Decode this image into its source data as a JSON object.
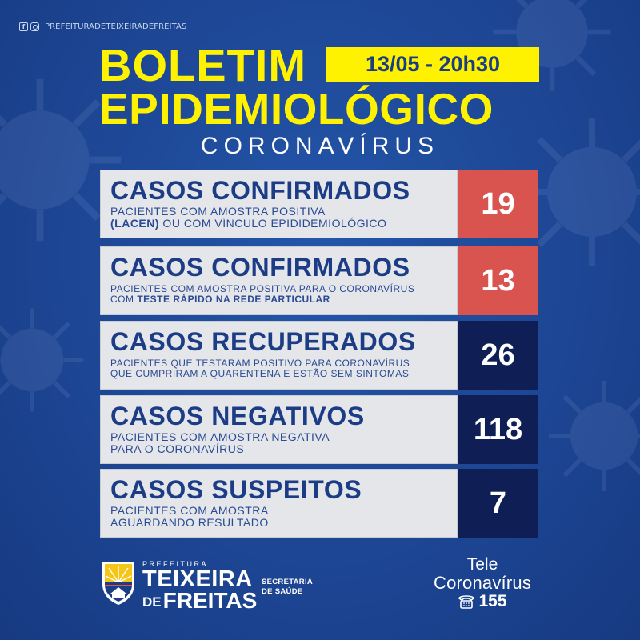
{
  "social": {
    "handle": "PREFEITURADETEIXEIRADEFREITAS",
    "icons": [
      "facebook-icon",
      "instagram-icon"
    ]
  },
  "header": {
    "title_line1": "BOLETIM",
    "title_line2": "EPIDEMIOLÓGICO",
    "subtitle": "CORONAVÍRUS",
    "date": "13/05 - 20h30"
  },
  "colors": {
    "background": "#1f4a9a",
    "title_yellow": "#fff200",
    "card_bg": "#e4e6ea",
    "heading_blue": "#1c3d86",
    "value_red": "#d9544f",
    "value_navy": "#0f1f55"
  },
  "cards": [
    {
      "heading": "CASOS CONFIRMADOS",
      "line1": "PACIENTES COM AMOSTRA POSITIVA",
      "line2_bold": "(LACEN)",
      "line2_rest": " OU COM VÍNCULO EPIDIDEMIOLÓGICO",
      "value": "19",
      "value_color": "#d9544f"
    },
    {
      "heading": "CASOS CONFIRMADOS",
      "line1": "PACIENTES COM AMOSTRA POSITIVA PARA O CORONAVÍRUS",
      "line2_pre": "COM ",
      "line2_bold": "TESTE RÁPIDO NA REDE PARTICULAR",
      "value": "13",
      "value_color": "#d9544f"
    },
    {
      "heading": "CASOS RECUPERADOS",
      "line1": "PACIENTES QUE TESTARAM POSITIVO PARA CORONAVÍRUS",
      "line2": "QUE CUMPRIRAM A QUARENTENA E ESTÃO SEM SINTOMAS",
      "value": "26",
      "value_color": "#0f1f55"
    },
    {
      "heading": "CASOS NEGATIVOS",
      "line1": "PACIENTES COM AMOSTRA NEGATIVA",
      "line2": "PARA O CORONAVÍRUS",
      "value": "118",
      "value_color": "#0f1f55"
    },
    {
      "heading": "CASOS SUSPEITOS",
      "line1": "PACIENTES COM AMOSTRA",
      "line2": "AGUARDANDO RESULTADO",
      "value": "7",
      "value_color": "#0f1f55"
    }
  ],
  "footer": {
    "prefeitura": "PREFEITURA",
    "city_line1": "TEIXEIRA",
    "city_de": "DE",
    "city_line2": "FREITAS",
    "secretaria_line1": "SECRETARIA",
    "secretaria_line2": "DE SAÚDE",
    "tele_line1": "Tele",
    "tele_line2": "Coronavírus",
    "tele_number": "155"
  }
}
